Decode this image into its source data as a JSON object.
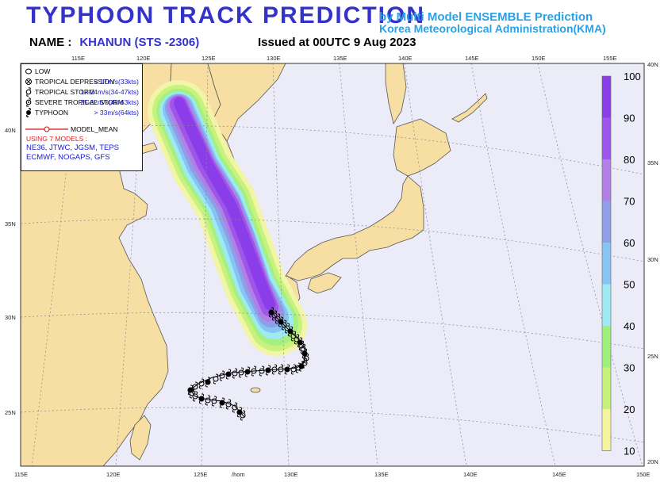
{
  "header": {
    "title": "TYPHOON TRACK PREDICTION",
    "subtitle_line1": "by Multi Model ENSEMBLE Prediction",
    "subtitle_line2": "Korea Meteorological Administration(KMA)",
    "name_label": "NAME :",
    "storm_name": "KHANUN (STS -2306)",
    "issued": "Issued at 00UTC  9 Aug 2023"
  },
  "axes": {
    "lon_top": [
      "115E",
      "120E",
      "125E",
      "130E",
      "135E",
      "140E",
      "145E",
      "150E",
      "155E"
    ],
    "lon_bottom": [
      "115E",
      "120E",
      "125E",
      "/hom",
      "130E",
      "135E",
      "140E",
      "145E",
      "150E"
    ],
    "lat_left": [
      "40N",
      "35N",
      "30N",
      "25N"
    ],
    "lat_right": [
      "40N",
      "35N",
      "30N",
      "25N",
      "20N"
    ]
  },
  "legend": {
    "rows": [
      {
        "symbol": "low-icon",
        "label": "LOW",
        "value": ""
      },
      {
        "symbol": "tropical-depression-icon",
        "label": "TROPICAL DEPRESSION",
        "value": "< 17m/s(33kts)"
      },
      {
        "symbol": "tropical-storm-icon",
        "label": "TROPICAL STORM",
        "value": "17-24m/s(34-47kts)"
      },
      {
        "symbol": "severe-tropical-storm-icon",
        "label": "SEVERE TROPICAL STORM",
        "value": "25-32m/s(48-63kts)"
      },
      {
        "symbol": "typhoon-icon",
        "label": "TYPHOON",
        "value": "> 33m/s(64kts)"
      }
    ],
    "mean_label": "MODEL_MEAN",
    "models_head": "USING 7 MODELS :",
    "models_line1": "NE36, JTWC, JGSM, TEPS",
    "models_line2": "ECMWF, NOGAPS, GFS"
  },
  "colorbar": {
    "labels": [
      "100",
      "90",
      "80",
      "70",
      "60",
      "50",
      "40",
      "30",
      "20",
      "10"
    ],
    "colors": [
      "#8a3de8",
      "#9d55ea",
      "#b27fe6",
      "#8f9ee8",
      "#86c4f2",
      "#9deaf2",
      "#9ef07a",
      "#c4f27a",
      "#f4f49e"
    ]
  },
  "colors": {
    "ocean": "#ececf8",
    "land": "#f7dfa3",
    "coast": "#555555",
    "grid": "#888888",
    "track": "#000000"
  }
}
